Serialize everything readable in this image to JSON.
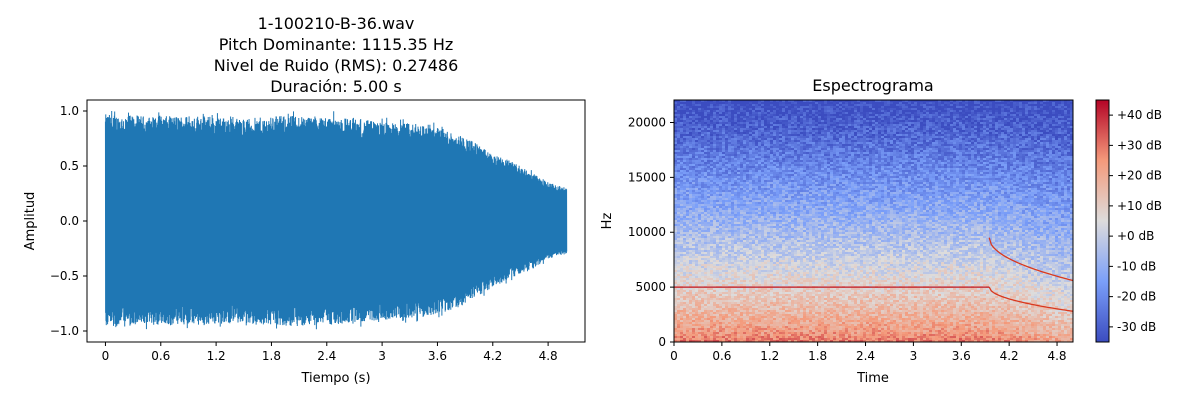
{
  "chart_data": [
    {
      "type": "line",
      "title_lines": [
        "1-100210-B-36.wav",
        "Pitch Dominante: 1115.35 Hz",
        "Nivel de Ruido (RMS): 0.27486",
        "Duración: 5.00 s"
      ],
      "xlabel": "Tiempo (s)",
      "ylabel": "Amplitud",
      "xlim": [
        -0.2,
        5.2
      ],
      "ylim": [
        -1.1,
        1.1
      ],
      "xticks": [
        0,
        0.6,
        1.2,
        1.8,
        2.4,
        3.0,
        3.6,
        4.2,
        4.8
      ],
      "xtick_labels": [
        "0",
        "0.6",
        "1.2",
        "1.8",
        "2.4",
        "3",
        "3.6",
        "4.2",
        "4.8"
      ],
      "yticks": [
        -1.0,
        -0.5,
        0.0,
        0.5,
        1.0
      ],
      "ytick_labels": [
        "−1.0",
        "−0.5",
        "0.0",
        "0.5",
        "1.0"
      ],
      "color": "#1f77b4",
      "duration": 5.0,
      "envelope": {
        "t": [
          0,
          0.5,
          1.0,
          1.5,
          2.0,
          2.5,
          3.0,
          3.5,
          3.8,
          4.0,
          4.2,
          4.4,
          4.6,
          4.8,
          5.0
        ],
        "upper": [
          0.97,
          0.95,
          0.96,
          0.93,
          0.96,
          0.95,
          0.9,
          0.88,
          0.8,
          0.72,
          0.6,
          0.55,
          0.45,
          0.35,
          0.3
        ],
        "lower": [
          -0.97,
          -0.95,
          -0.95,
          -0.93,
          -0.96,
          -0.94,
          -0.9,
          -0.87,
          -0.8,
          -0.7,
          -0.6,
          -0.52,
          -0.45,
          -0.35,
          -0.3
        ]
      }
    },
    {
      "type": "heatmap",
      "title": "Espectrograma",
      "xlabel": "Time",
      "ylabel": "Hz",
      "xlim": [
        0,
        5.0
      ],
      "ylim": [
        0,
        22050
      ],
      "xticks": [
        0,
        0.6,
        1.2,
        1.8,
        2.4,
        3.0,
        3.6,
        4.2,
        4.8
      ],
      "xtick_labels": [
        "0",
        "0.6",
        "1.2",
        "1.8",
        "2.4",
        "3",
        "3.6",
        "4.2",
        "4.8"
      ],
      "yticks": [
        0,
        5000,
        10000,
        15000,
        20000
      ],
      "ytick_labels": [
        "0",
        "5000",
        "10000",
        "15000",
        "20000"
      ],
      "colormap": "coolwarm",
      "colorbar": {
        "vmin": -35,
        "vmax": 45,
        "ticks": [
          -30,
          -20,
          -10,
          0,
          10,
          20,
          30,
          40
        ],
        "labels": [
          "-30 dB",
          "-20 dB",
          "-10 dB",
          "+0 dB",
          "+10 dB",
          "+20 dB",
          "+30 dB",
          "+40 dB"
        ]
      },
      "features": {
        "tone_hz": 5000,
        "tone_end_s": 3.95,
        "sweep_upper_hz": [
          9500,
          5600
        ],
        "sweep_lower_hz": [
          5000,
          2800
        ],
        "sweep_time_s": [
          3.95,
          5.0
        ]
      }
    }
  ]
}
